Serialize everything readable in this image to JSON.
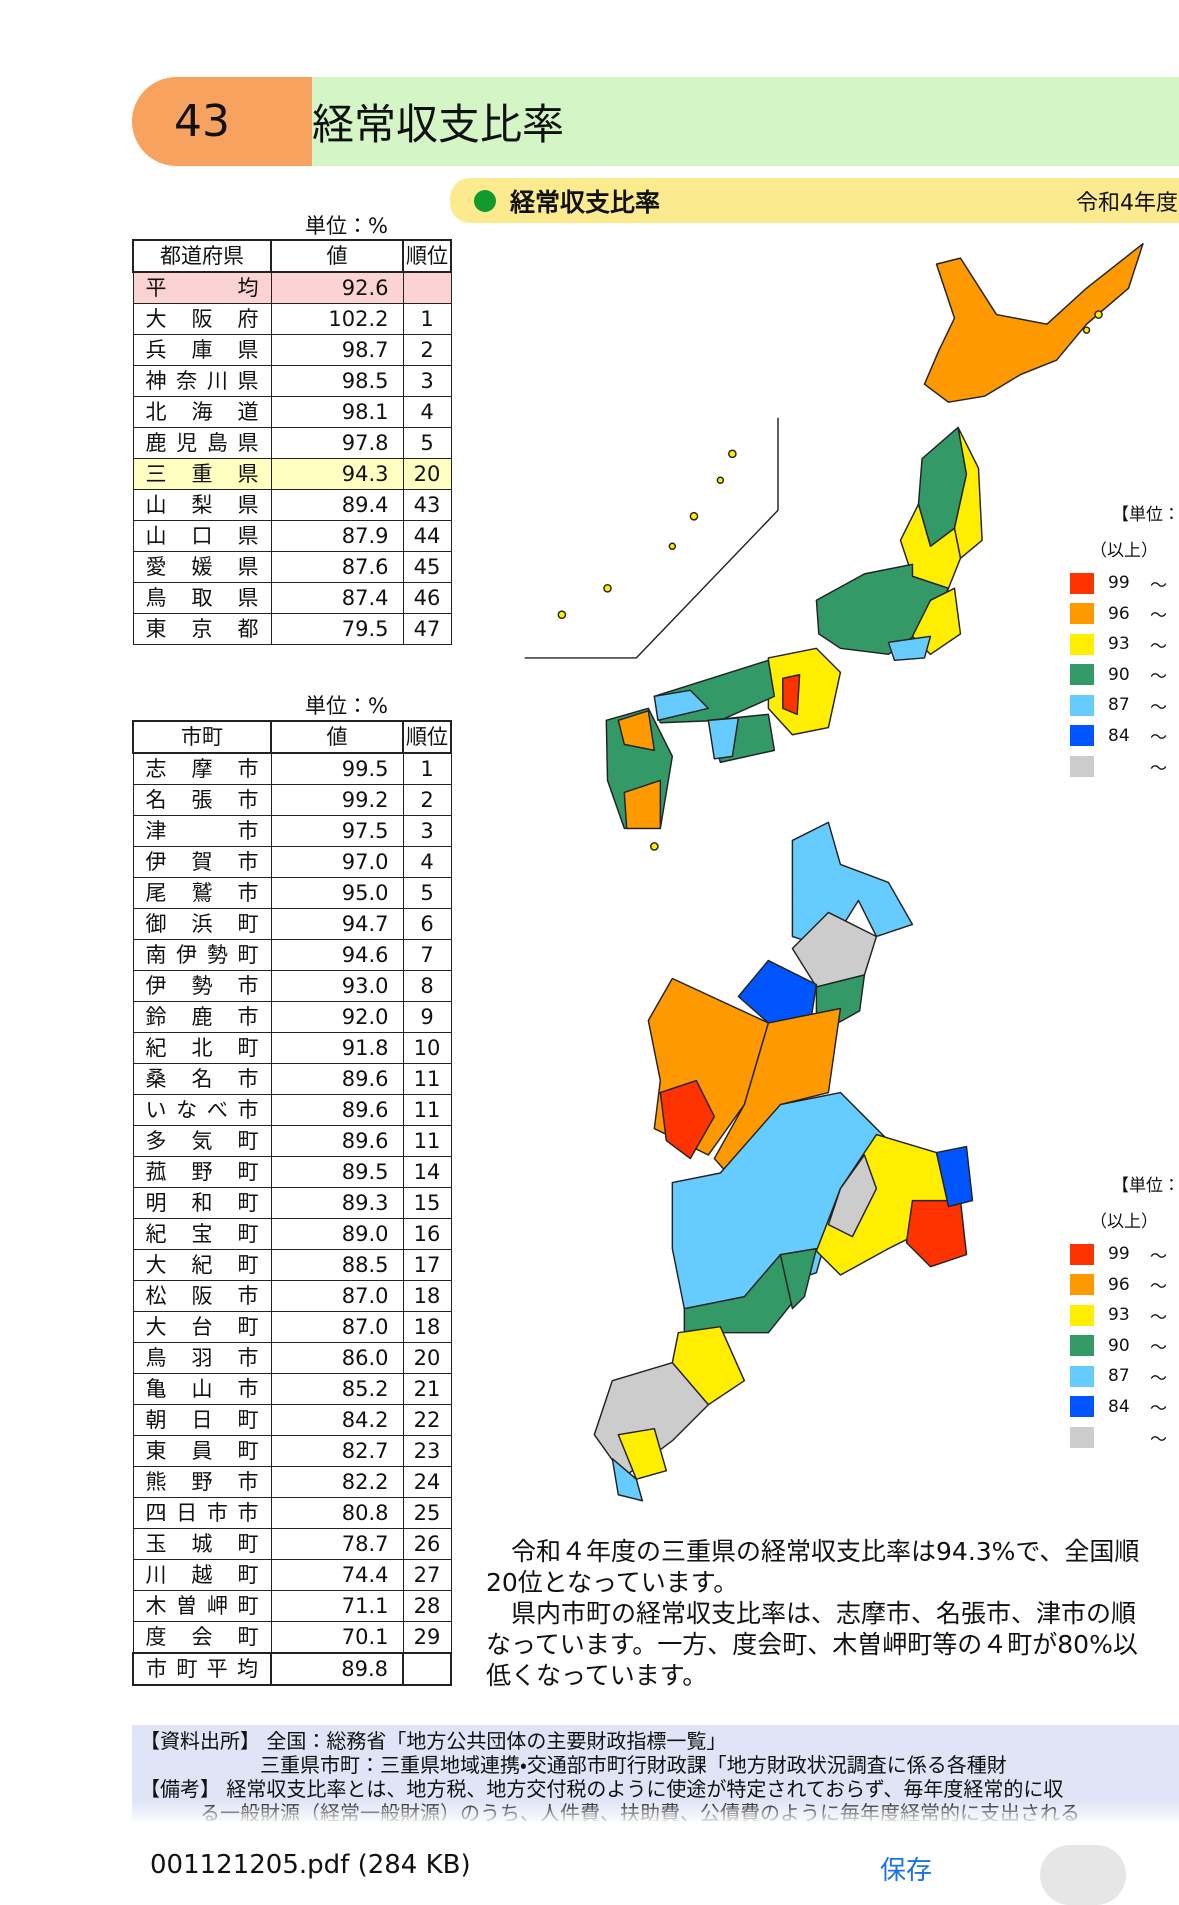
{
  "header": {
    "number": "43",
    "title": "経常収支比率"
  },
  "section": {
    "title": "経常収支比率",
    "year": "令和4年度"
  },
  "pref_table": {
    "unit": "単位：%",
    "headers": [
      "都道府県",
      "値",
      "順位"
    ],
    "average": {
      "name": "平均",
      "value": "92.6"
    },
    "rows": [
      [
        "大阪府",
        "102.2",
        "1"
      ],
      [
        "兵庫県",
        "98.7",
        "2"
      ],
      [
        "神奈川県",
        "98.5",
        "3"
      ],
      [
        "北海道",
        "98.1",
        "4"
      ],
      [
        "鹿児島県",
        "97.8",
        "5"
      ],
      [
        "三重県",
        "94.3",
        "20"
      ],
      [
        "山梨県",
        "89.4",
        "43"
      ],
      [
        "山口県",
        "87.9",
        "44"
      ],
      [
        "愛媛県",
        "87.6",
        "45"
      ],
      [
        "鳥取県",
        "87.4",
        "46"
      ],
      [
        "東京都",
        "79.5",
        "47"
      ]
    ]
  },
  "muni_table": {
    "unit": "単位：%",
    "headers": [
      "市町",
      "値",
      "順位"
    ],
    "rows": [
      [
        "志摩市",
        "99.5",
        "1"
      ],
      [
        "名張市",
        "99.2",
        "2"
      ],
      [
        "津市",
        "97.5",
        "3"
      ],
      [
        "伊賀市",
        "97.0",
        "4"
      ],
      [
        "尾鷲市",
        "95.0",
        "5"
      ],
      [
        "御浜町",
        "94.7",
        "6"
      ],
      [
        "南伊勢町",
        "94.6",
        "7"
      ],
      [
        "伊勢市",
        "93.0",
        "8"
      ],
      [
        "鈴鹿市",
        "92.0",
        "9"
      ],
      [
        "紀北町",
        "91.8",
        "10"
      ],
      [
        "桑名市",
        "89.6",
        "11"
      ],
      [
        "いなべ市",
        "89.6",
        "11"
      ],
      [
        "多気町",
        "89.6",
        "11"
      ],
      [
        "菰野町",
        "89.5",
        "14"
      ],
      [
        "明和町",
        "89.3",
        "15"
      ],
      [
        "紀宝町",
        "89.0",
        "16"
      ],
      [
        "大紀町",
        "88.5",
        "17"
      ],
      [
        "松阪市",
        "87.0",
        "18"
      ],
      [
        "大台町",
        "87.0",
        "18"
      ],
      [
        "鳥羽市",
        "86.0",
        "20"
      ],
      [
        "亀山市",
        "85.2",
        "21"
      ],
      [
        "朝日町",
        "84.2",
        "22"
      ],
      [
        "東員町",
        "82.7",
        "23"
      ],
      [
        "熊野市",
        "82.2",
        "24"
      ],
      [
        "四日市市",
        "80.8",
        "25"
      ],
      [
        "玉城町",
        "78.7",
        "26"
      ],
      [
        "川越町",
        "74.4",
        "27"
      ],
      [
        "木曽岬町",
        "71.1",
        "28"
      ],
      [
        "度会町",
        "70.1",
        "29"
      ]
    ],
    "footer": {
      "name": "市町平均",
      "value": "89.8"
    }
  },
  "legend": {
    "title": "【単位：%",
    "header": "（以上）",
    "range_mark": "～",
    "levels": [
      "99",
      "96",
      "93",
      "90",
      "87",
      "84"
    ]
  },
  "paragraph": [
    "　令和４年度の三重県の経常収支比率は94.3%で、全国順",
    "20位となっています。",
    "　県内市町の経常収支比率は、志摩市、名張市、津市の順",
    "なっています。一方、度会町、木曽岬町等の４町が80%以",
    "低くなっています。"
  ],
  "notes": [
    "【資料出所】 全国：総務省「地方公共団体の主要財政指標一覧」",
    "　　　　　　三重県市町：三重県地域連携・交通部市町行財政課「地方財政状況調査に係る各種財",
    "【備考】 経常収支比率とは、地方税、地方交付税のように使途が特定されておらず、毎年度経常的に収",
    "　　　る一般財源（経常一般財源）のうち、人件費、扶助費、公債費のように毎年度経常的に支出される"
  ],
  "download": {
    "file": "001121205.pdf (284 KB)",
    "save": "保存"
  }
}
